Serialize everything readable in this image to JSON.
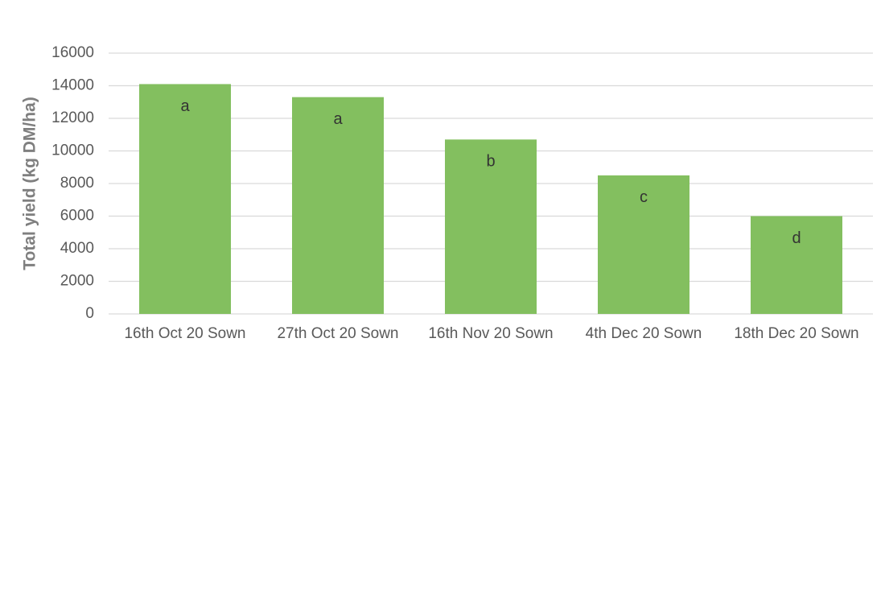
{
  "chart_data": {
    "type": "bar",
    "y_axis_label": "Total yield (kg DM/ha)",
    "categories": [
      "16th Oct 20 Sown",
      "27th Oct 20 Sown",
      "16th Nov 20 Sown",
      "4th Dec 20 Sown",
      "18th Dec 20 Sown"
    ],
    "values": [
      14100,
      13300,
      10700,
      8500,
      6000
    ],
    "annotations": [
      "a",
      "a",
      "b",
      "c",
      "d"
    ],
    "color": "#83bf5f",
    "ylim": [
      0,
      16000
    ],
    "yticks": [
      0,
      2000,
      4000,
      6000,
      8000,
      10000,
      12000,
      14000,
      16000
    ],
    "grid": true
  }
}
